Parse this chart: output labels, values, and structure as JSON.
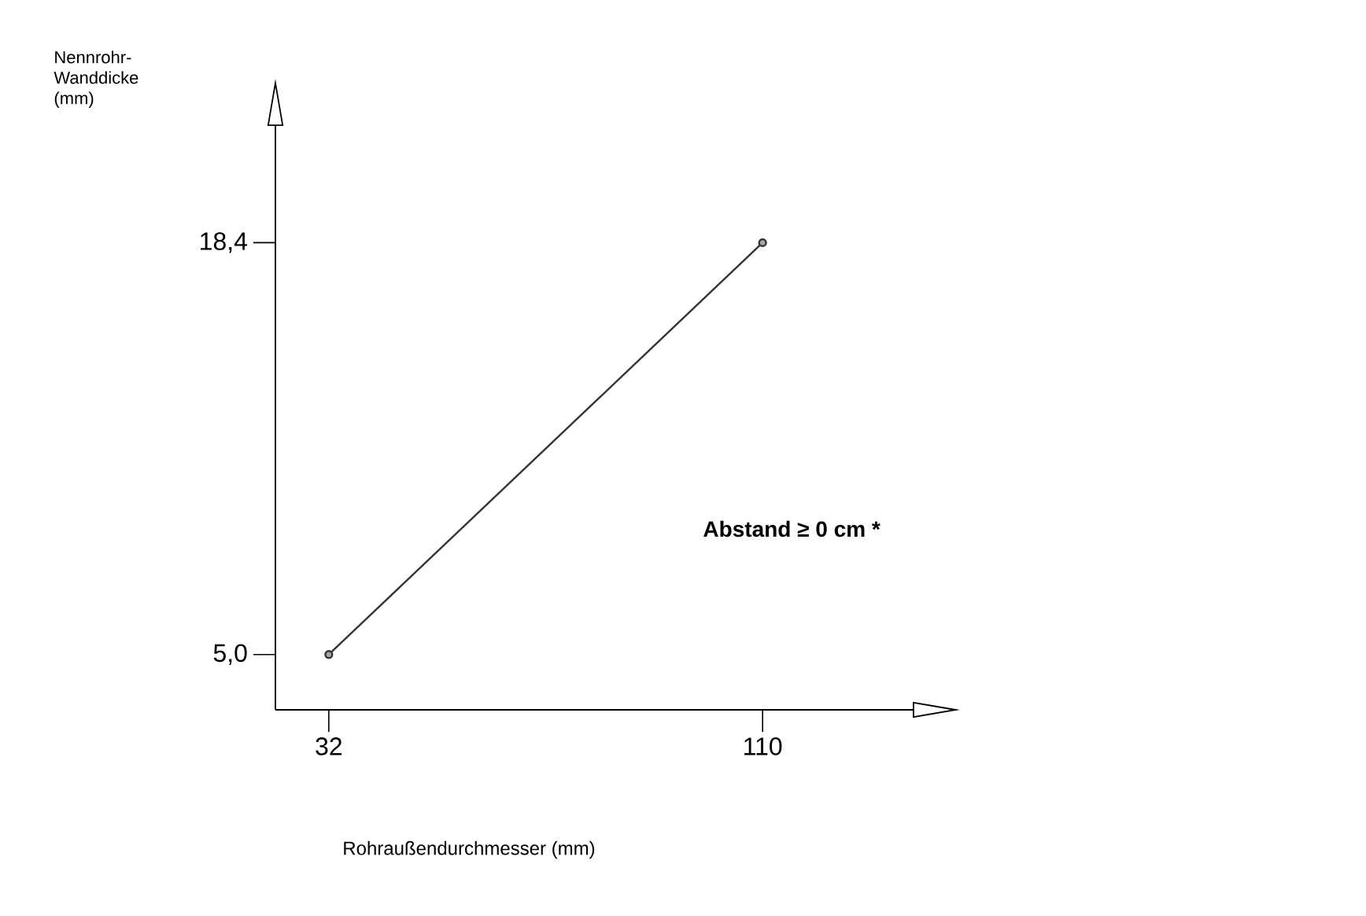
{
  "chart_data": {
    "type": "line",
    "xlabel": "Rohraußendurchmesser (mm)",
    "ylabel": "Nennrohr-Wanddicke (mm)",
    "x": [
      32,
      110
    ],
    "series": [
      {
        "color": "#333333",
        "values": [
          5.0,
          18.4
        ]
      }
    ],
    "xlim": [
      22.4,
      137
    ],
    "ylim": [
      3.2,
      22.2
    ],
    "xticks": [
      32,
      110
    ],
    "yticks": [
      {
        "value": 5.0,
        "label": "5,0"
      },
      {
        "value": 18.4,
        "label": "18,4"
      }
    ],
    "marker": "circle",
    "line_style": "solid",
    "annotations": [
      "Abstand ≥ 0 cm *"
    ]
  }
}
